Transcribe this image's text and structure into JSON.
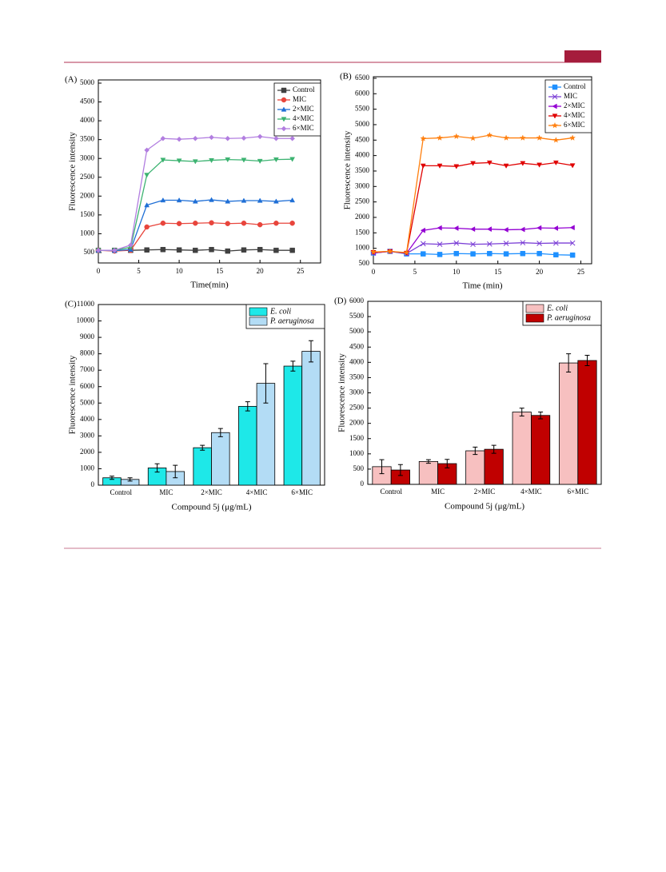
{
  "chart_data": [
    {
      "type": "line",
      "panel_label": "(A)",
      "xlabel": "Time(min)",
      "ylabel": "Fluorescence intensity",
      "x": [
        0,
        2,
        4,
        6,
        8,
        10,
        12,
        14,
        16,
        18,
        20,
        22,
        24
      ],
      "xlim": [
        0,
        27.5
      ],
      "xticks": [
        0,
        5,
        10,
        15,
        20,
        25
      ],
      "ylim": [
        224,
        5085
      ],
      "yticks": [
        500,
        1000,
        1500,
        2000,
        2500,
        3000,
        3500,
        4000,
        4500,
        5000
      ],
      "legend": "upper right",
      "series": [
        {
          "name": "Control",
          "color": "#404040",
          "marker": "square",
          "values": [
            560,
            560,
            560,
            570,
            580,
            570,
            560,
            580,
            540,
            570,
            580,
            560,
            560
          ]
        },
        {
          "name": "MIC",
          "color": "#e8453c",
          "marker": "circle",
          "values": [
            560,
            540,
            560,
            1180,
            1280,
            1270,
            1280,
            1290,
            1270,
            1280,
            1240,
            1280,
            1280
          ]
        },
        {
          "name": "2×MIC",
          "color": "#1f6fd6",
          "marker": "triangle-up",
          "values": [
            560,
            550,
            580,
            1760,
            1890,
            1890,
            1860,
            1900,
            1860,
            1880,
            1880,
            1860,
            1890
          ]
        },
        {
          "name": "4×MIC",
          "color": "#3cb371",
          "marker": "triangle-down",
          "values": [
            560,
            560,
            640,
            2560,
            2960,
            2940,
            2920,
            2950,
            2970,
            2960,
            2930,
            2970,
            2980
          ]
        },
        {
          "name": "6×MIC",
          "color": "#b27ee0",
          "marker": "diamond",
          "values": [
            560,
            560,
            700,
            3220,
            3530,
            3510,
            3530,
            3560,
            3530,
            3540,
            3580,
            3530,
            3530
          ]
        }
      ]
    },
    {
      "type": "line",
      "panel_label": "(B)",
      "xlabel": "Time (min)",
      "ylabel": "Fluorescence intensity",
      "x": [
        0,
        2,
        4,
        6,
        8,
        10,
        12,
        14,
        16,
        18,
        20,
        22,
        24
      ],
      "xlim": [
        0,
        26.3
      ],
      "xticks": [
        0,
        5,
        10,
        15,
        20,
        25
      ],
      "ylim": [
        500,
        6550
      ],
      "yticks": [
        500,
        1000,
        1500,
        2000,
        2500,
        3000,
        3500,
        4000,
        4500,
        5000,
        5500,
        6000,
        6500
      ],
      "legend": "upper right",
      "series": [
        {
          "name": "Control",
          "color": "#1e90ff",
          "marker": "square",
          "values": [
            850,
            900,
            820,
            820,
            800,
            830,
            820,
            830,
            820,
            830,
            830,
            790,
            780
          ]
        },
        {
          "name": "MIC",
          "color": "#7b3fd6",
          "marker": "x",
          "values": [
            850,
            900,
            830,
            1150,
            1130,
            1170,
            1130,
            1140,
            1160,
            1180,
            1160,
            1170,
            1170
          ]
        },
        {
          "name": "2×MIC",
          "color": "#9400d3",
          "marker": "triangle-left",
          "values": [
            850,
            900,
            840,
            1580,
            1660,
            1650,
            1620,
            1620,
            1600,
            1610,
            1660,
            1650,
            1670
          ]
        },
        {
          "name": "4×MIC",
          "color": "#e00000",
          "marker": "triangle-down",
          "values": [
            870,
            900,
            850,
            3670,
            3670,
            3650,
            3750,
            3770,
            3670,
            3750,
            3700,
            3770,
            3680
          ]
        },
        {
          "name": "6×MIC",
          "color": "#ff7f0e",
          "marker": "star",
          "values": [
            880,
            900,
            860,
            4550,
            4570,
            4620,
            4560,
            4660,
            4570,
            4570,
            4570,
            4500,
            4570
          ]
        }
      ]
    },
    {
      "type": "bar",
      "panel_label": "(C)",
      "xlabel": "Compound 5j (μg/mL)",
      "ylabel": "Fluorescence intensity",
      "categories": [
        "Control",
        "MIC",
        "2×MIC",
        "4×MIC",
        "6×MIC"
      ],
      "ylim": [
        0,
        11000
      ],
      "yticks": [
        0,
        1000,
        2000,
        3000,
        4000,
        5000,
        6000,
        7000,
        8000,
        9000,
        10000,
        11000
      ],
      "legend": "upper right",
      "series": [
        {
          "name": "E. coli",
          "color": "#1ee8e8",
          "values": [
            450,
            1050,
            2280,
            4800,
            7250
          ],
          "errors": [
            100,
            250,
            150,
            280,
            300
          ]
        },
        {
          "name": "P. aeruginosa",
          "color": "#b3dcf5",
          "values": [
            350,
            830,
            3200,
            6200,
            8150
          ],
          "errors": [
            100,
            380,
            250,
            1200,
            650
          ]
        }
      ]
    },
    {
      "type": "bar",
      "panel_label": "(D)",
      "xlabel": "Compound 5j (μg/mL)",
      "ylabel": "Fluorescence intensity",
      "categories": [
        "Control",
        "MIC",
        "2×MIC",
        "4×MIC",
        "6×MIC"
      ],
      "ylim": [
        0,
        6000
      ],
      "yticks": [
        0,
        500,
        1000,
        1500,
        2000,
        2500,
        3000,
        3500,
        4000,
        4500,
        5000,
        5500,
        6000
      ],
      "legend": "upper right",
      "series": [
        {
          "name": "E. coli",
          "color": "#f7c0c0",
          "values": [
            580,
            750,
            1100,
            2370,
            3980
          ],
          "errors": [
            230,
            60,
            120,
            130,
            300
          ]
        },
        {
          "name": "P. aeruginosa",
          "color": "#c00000",
          "values": [
            470,
            680,
            1150,
            2260,
            4060
          ],
          "errors": [
            180,
            140,
            130,
            110,
            170
          ]
        }
      ]
    }
  ]
}
